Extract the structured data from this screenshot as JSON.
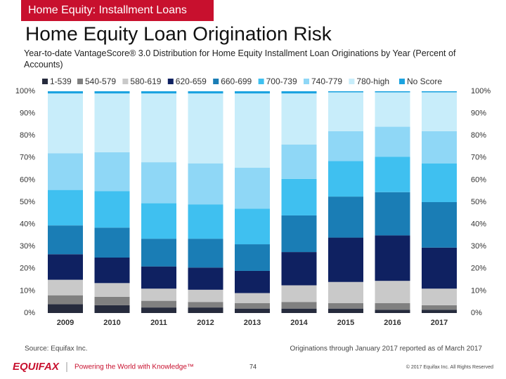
{
  "header": {
    "section": "Home Equity: Installment Loans",
    "title": "Home Equity Loan Origination Risk",
    "subtitle": "Year-to-date VantageScore® 3.0 Distribution for Home Equity Installment Loan Originations by Year (Percent of Accounts)"
  },
  "chart_data": {
    "type": "stacked_bar",
    "categories": [
      "2009",
      "2010",
      "2011",
      "2012",
      "2013",
      "2014",
      "2015",
      "2016",
      "2017"
    ],
    "series": [
      {
        "name": "1-539",
        "color": "#262b3d",
        "values": [
          4,
          3.5,
          2.5,
          2.5,
          2,
          2,
          2,
          1.5,
          1.5
        ]
      },
      {
        "name": "540-579",
        "color": "#808080",
        "values": [
          4,
          3.8,
          3,
          2.5,
          2.5,
          3,
          2.5,
          3,
          2
        ]
      },
      {
        "name": "580-619",
        "color": "#c9c9c9",
        "values": [
          7,
          6.2,
          5.5,
          5.5,
          4.5,
          7.5,
          9.5,
          10,
          7.5
        ]
      },
      {
        "name": "620-659",
        "color": "#0f2161",
        "values": [
          11.5,
          11.5,
          10,
          10,
          10,
          15,
          20,
          20.5,
          18.5
        ]
      },
      {
        "name": "660-699",
        "color": "#1a7db5",
        "values": [
          13,
          13.5,
          12.5,
          13,
          12,
          16.5,
          18.5,
          19.5,
          20.5
        ]
      },
      {
        "name": "700-739",
        "color": "#3fc0f0",
        "values": [
          16,
          16.5,
          16,
          15.5,
          16,
          16.5,
          16,
          16,
          17.5
        ]
      },
      {
        "name": "740-779",
        "color": "#8fd7f6",
        "values": [
          16.5,
          17.5,
          18.5,
          18.5,
          18.5,
          15.5,
          13.5,
          13.5,
          14.5
        ]
      },
      {
        "name": "780-high",
        "color": "#c8edfa",
        "values": [
          27,
          26.5,
          31,
          31.5,
          33.5,
          23,
          17.5,
          15.5,
          17.5
        ]
      },
      {
        "name": "No Score",
        "color": "#1ca3e0",
        "values": [
          1,
          1,
          1,
          1,
          1,
          1,
          0.5,
          0.5,
          0.5
        ]
      }
    ],
    "ylim": [
      0,
      100
    ],
    "yticks": [
      {
        "value": 0,
        "label": "0%"
      },
      {
        "value": 10,
        "label": "10%"
      },
      {
        "value": 20,
        "label": "20%"
      },
      {
        "value": 30,
        "label": "30%"
      },
      {
        "value": 40,
        "label": "40%"
      },
      {
        "value": 50,
        "label": "50%"
      },
      {
        "value": 60,
        "label": "60%"
      },
      {
        "value": 70,
        "label": "70%"
      },
      {
        "value": 80,
        "label": "80%"
      },
      {
        "value": 90,
        "label": "90%"
      },
      {
        "value": 100,
        "label": "100%"
      }
    ],
    "grid": false,
    "legend": "top"
  },
  "footer": {
    "source": "Source: Equifax Inc.",
    "note": "Originations through January 2017 reported as of March 2017",
    "logo": "EQUIFAX",
    "tagline": "Powering the World with Knowledge™",
    "page": "74",
    "copyright": "© 2017 Equifax Inc. All Rights Reserved"
  }
}
